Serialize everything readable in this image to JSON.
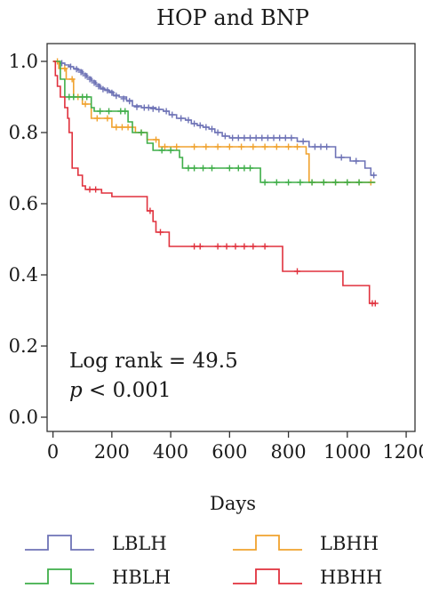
{
  "chart_data": {
    "type": "line",
    "title": "HOP and BNP",
    "xlabel": "Days",
    "ylabel": "",
    "xlim": [
      -20,
      1230
    ],
    "ylim": [
      -0.04,
      1.05
    ],
    "xticks": [
      0,
      200,
      400,
      600,
      800,
      1000,
      1200
    ],
    "yticks": [
      0.0,
      0.2,
      0.4,
      0.6,
      0.8,
      1.0
    ],
    "xtick_labels": [
      "0",
      "200",
      "400",
      "600",
      "800",
      "1000",
      "1200"
    ],
    "ytick_labels": [
      "0.0",
      "0.2",
      "0.4",
      "0.6",
      "0.8",
      "1.0"
    ],
    "grid": false,
    "legend_position": "bottom",
    "annotation": {
      "line1": "Log rank = 49.5",
      "line2_italic": "p",
      "line2_rest": " < 0.001"
    },
    "series": [
      {
        "name": "LBLH",
        "color": "#6e73b6",
        "steps": [
          [
            0,
            1.0
          ],
          [
            20,
            0.995
          ],
          [
            40,
            0.99
          ],
          [
            55,
            0.985
          ],
          [
            70,
            0.98
          ],
          [
            85,
            0.975
          ],
          [
            100,
            0.965
          ],
          [
            115,
            0.955
          ],
          [
            130,
            0.945
          ],
          [
            145,
            0.935
          ],
          [
            160,
            0.925
          ],
          [
            175,
            0.92
          ],
          [
            190,
            0.915
          ],
          [
            205,
            0.905
          ],
          [
            225,
            0.9
          ],
          [
            250,
            0.89
          ],
          [
            270,
            0.875
          ],
          [
            300,
            0.87
          ],
          [
            350,
            0.865
          ],
          [
            375,
            0.86
          ],
          [
            395,
            0.85
          ],
          [
            420,
            0.84
          ],
          [
            450,
            0.835
          ],
          [
            470,
            0.825
          ],
          [
            490,
            0.82
          ],
          [
            510,
            0.815
          ],
          [
            530,
            0.81
          ],
          [
            550,
            0.8
          ],
          [
            575,
            0.79
          ],
          [
            600,
            0.785
          ],
          [
            830,
            0.775
          ],
          [
            870,
            0.76
          ],
          [
            960,
            0.73
          ],
          [
            1010,
            0.72
          ],
          [
            1060,
            0.7
          ],
          [
            1080,
            0.68
          ],
          [
            1095,
            0.68
          ]
        ],
        "censors": [
          [
            30,
            0.995
          ],
          [
            60,
            0.985
          ],
          [
            80,
            0.978
          ],
          [
            95,
            0.97
          ],
          [
            110,
            0.96
          ],
          [
            125,
            0.95
          ],
          [
            140,
            0.94
          ],
          [
            155,
            0.93
          ],
          [
            170,
            0.922
          ],
          [
            185,
            0.918
          ],
          [
            200,
            0.912
          ],
          [
            215,
            0.903
          ],
          [
            240,
            0.895
          ],
          [
            260,
            0.888
          ],
          [
            285,
            0.872
          ],
          [
            310,
            0.87
          ],
          [
            325,
            0.87
          ],
          [
            340,
            0.867
          ],
          [
            360,
            0.865
          ],
          [
            385,
            0.86
          ],
          [
            405,
            0.85
          ],
          [
            435,
            0.84
          ],
          [
            460,
            0.835
          ],
          [
            480,
            0.825
          ],
          [
            500,
            0.82
          ],
          [
            520,
            0.815
          ],
          [
            540,
            0.81
          ],
          [
            560,
            0.8
          ],
          [
            585,
            0.79
          ],
          [
            610,
            0.785
          ],
          [
            630,
            0.785
          ],
          [
            650,
            0.785
          ],
          [
            670,
            0.785
          ],
          [
            690,
            0.785
          ],
          [
            710,
            0.785
          ],
          [
            730,
            0.785
          ],
          [
            750,
            0.785
          ],
          [
            770,
            0.785
          ],
          [
            790,
            0.785
          ],
          [
            810,
            0.785
          ],
          [
            850,
            0.775
          ],
          [
            890,
            0.76
          ],
          [
            910,
            0.76
          ],
          [
            930,
            0.76
          ],
          [
            980,
            0.73
          ],
          [
            1030,
            0.72
          ],
          [
            1090,
            0.68
          ]
        ]
      },
      {
        "name": "LBHH",
        "color": "#f0a22e",
        "steps": [
          [
            0,
            1.0
          ],
          [
            20,
            0.98
          ],
          [
            45,
            0.95
          ],
          [
            70,
            0.9
          ],
          [
            100,
            0.88
          ],
          [
            130,
            0.84
          ],
          [
            160,
            0.84
          ],
          [
            200,
            0.815
          ],
          [
            265,
            0.815
          ],
          [
            280,
            0.8
          ],
          [
            320,
            0.78
          ],
          [
            340,
            0.78
          ],
          [
            360,
            0.76
          ],
          [
            850,
            0.76
          ],
          [
            860,
            0.74
          ],
          [
            870,
            0.66
          ],
          [
            1095,
            0.66
          ]
        ],
        "censors": [
          [
            15,
            1.0
          ],
          [
            40,
            0.98
          ],
          [
            65,
            0.95
          ],
          [
            85,
            0.9
          ],
          [
            110,
            0.88
          ],
          [
            150,
            0.84
          ],
          [
            185,
            0.84
          ],
          [
            215,
            0.815
          ],
          [
            235,
            0.815
          ],
          [
            255,
            0.815
          ],
          [
            300,
            0.8
          ],
          [
            350,
            0.78
          ],
          [
            380,
            0.76
          ],
          [
            420,
            0.76
          ],
          [
            480,
            0.76
          ],
          [
            520,
            0.76
          ],
          [
            560,
            0.76
          ],
          [
            600,
            0.76
          ],
          [
            640,
            0.76
          ],
          [
            680,
            0.76
          ],
          [
            720,
            0.76
          ],
          [
            760,
            0.76
          ],
          [
            800,
            0.76
          ],
          [
            830,
            0.76
          ],
          [
            880,
            0.66
          ],
          [
            920,
            0.66
          ],
          [
            960,
            0.66
          ],
          [
            1000,
            0.66
          ],
          [
            1040,
            0.66
          ],
          [
            1080,
            0.66
          ]
        ]
      },
      {
        "name": "HBLH",
        "color": "#3fae49",
        "steps": [
          [
            0,
            1.0
          ],
          [
            25,
            0.95
          ],
          [
            40,
            0.9
          ],
          [
            130,
            0.87
          ],
          [
            140,
            0.86
          ],
          [
            255,
            0.83
          ],
          [
            270,
            0.8
          ],
          [
            285,
            0.8
          ],
          [
            320,
            0.77
          ],
          [
            340,
            0.75
          ],
          [
            430,
            0.73
          ],
          [
            440,
            0.7
          ],
          [
            700,
            0.7
          ],
          [
            705,
            0.66
          ],
          [
            1095,
            0.66
          ]
        ],
        "censors": [
          [
            55,
            0.9
          ],
          [
            70,
            0.9
          ],
          [
            100,
            0.9
          ],
          [
            115,
            0.9
          ],
          [
            160,
            0.86
          ],
          [
            190,
            0.86
          ],
          [
            230,
            0.86
          ],
          [
            245,
            0.86
          ],
          [
            300,
            0.8
          ],
          [
            370,
            0.75
          ],
          [
            400,
            0.75
          ],
          [
            460,
            0.7
          ],
          [
            480,
            0.7
          ],
          [
            510,
            0.7
          ],
          [
            540,
            0.7
          ],
          [
            600,
            0.7
          ],
          [
            630,
            0.7
          ],
          [
            650,
            0.7
          ],
          [
            670,
            0.7
          ],
          [
            720,
            0.66
          ],
          [
            760,
            0.66
          ],
          [
            800,
            0.66
          ],
          [
            840,
            0.66
          ],
          [
            880,
            0.66
          ],
          [
            920,
            0.66
          ],
          [
            960,
            0.66
          ],
          [
            1000,
            0.66
          ],
          [
            1040,
            0.66
          ]
        ]
      },
      {
        "name": "HBHH",
        "color": "#e0313d",
        "steps": [
          [
            0,
            1.0
          ],
          [
            8,
            0.96
          ],
          [
            15,
            0.93
          ],
          [
            25,
            0.9
          ],
          [
            40,
            0.87
          ],
          [
            50,
            0.84
          ],
          [
            55,
            0.8
          ],
          [
            65,
            0.7
          ],
          [
            85,
            0.68
          ],
          [
            100,
            0.65
          ],
          [
            110,
            0.64
          ],
          [
            165,
            0.63
          ],
          [
            200,
            0.62
          ],
          [
            320,
            0.58
          ],
          [
            340,
            0.55
          ],
          [
            350,
            0.52
          ],
          [
            385,
            0.52
          ],
          [
            395,
            0.48
          ],
          [
            775,
            0.48
          ],
          [
            780,
            0.41
          ],
          [
            980,
            0.41
          ],
          [
            985,
            0.37
          ],
          [
            1070,
            0.37
          ],
          [
            1075,
            0.32
          ],
          [
            1095,
            0.32
          ]
        ],
        "censors": [
          [
            125,
            0.64
          ],
          [
            145,
            0.64
          ],
          [
            330,
            0.58
          ],
          [
            365,
            0.52
          ],
          [
            480,
            0.48
          ],
          [
            500,
            0.48
          ],
          [
            560,
            0.48
          ],
          [
            590,
            0.48
          ],
          [
            620,
            0.48
          ],
          [
            650,
            0.48
          ],
          [
            680,
            0.48
          ],
          [
            720,
            0.48
          ],
          [
            830,
            0.41
          ],
          [
            1085,
            0.32
          ],
          [
            1095,
            0.32
          ]
        ]
      }
    ]
  }
}
